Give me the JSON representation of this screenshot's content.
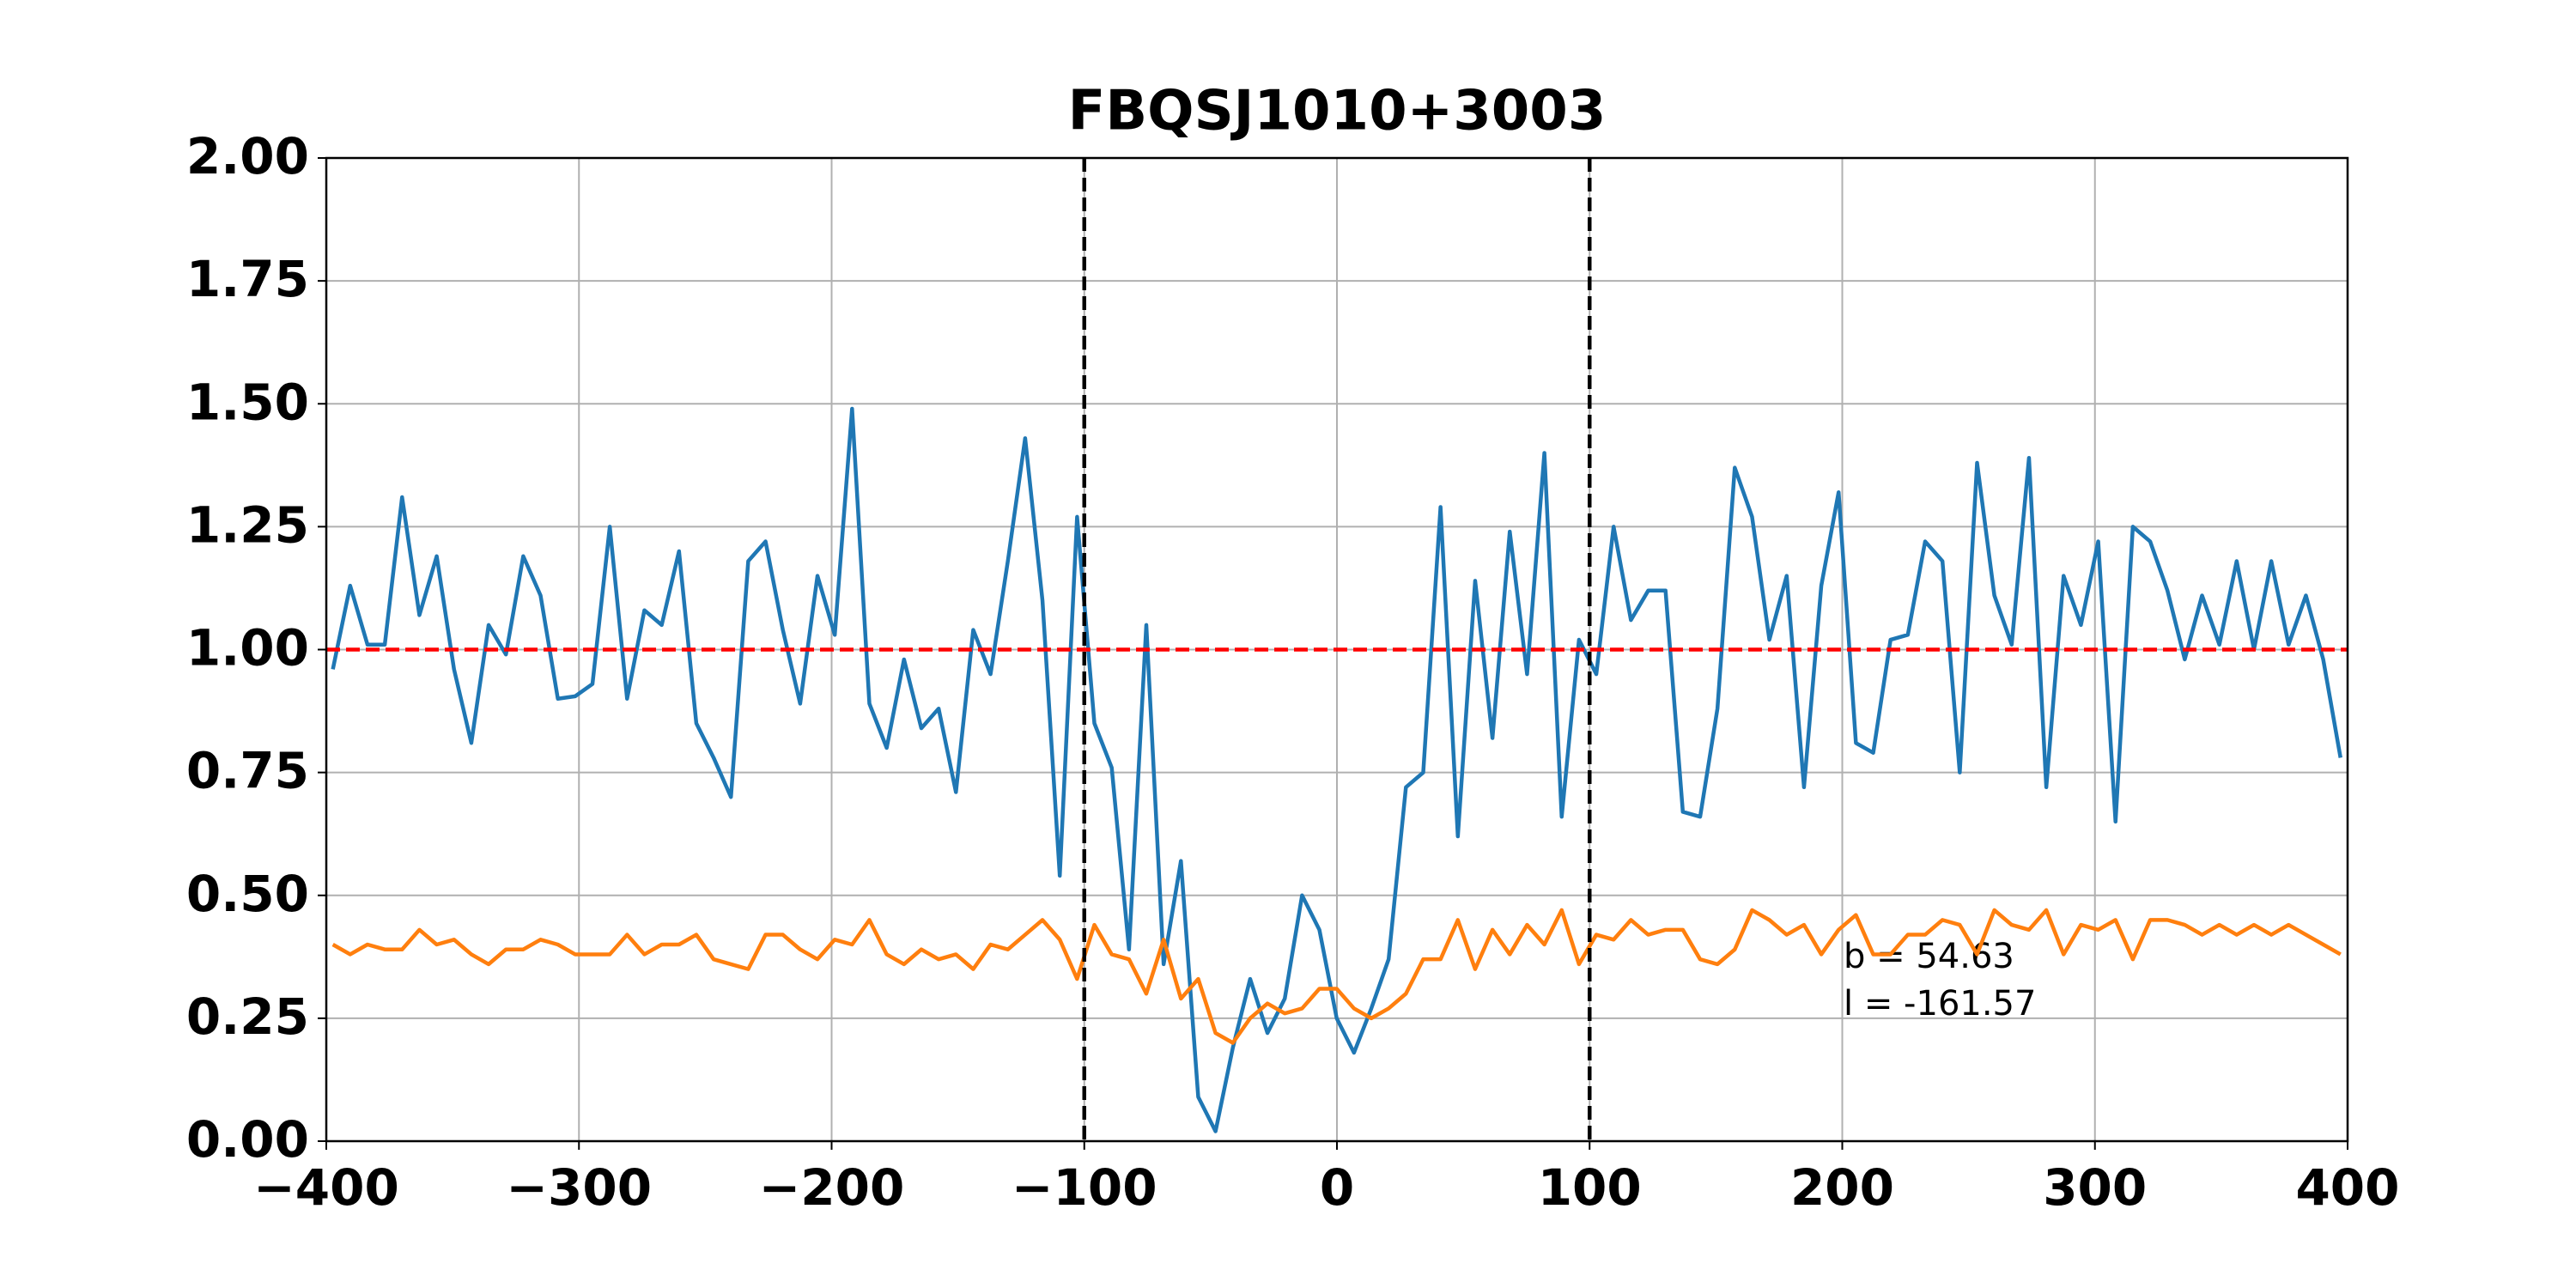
{
  "chart_data": {
    "type": "line",
    "title": "FBQSJ1010+3003",
    "x": [
      -397.4,
      -390.55,
      -383.7,
      -376.85,
      -370.0,
      -363.15,
      -356.3,
      -349.45,
      -342.6,
      -335.75,
      -328.9,
      -322.05,
      -315.2,
      -308.35,
      -301.5,
      -294.65,
      -287.8,
      -280.95,
      -274.1,
      -267.25,
      -260.4,
      -253.55,
      -246.7,
      -239.85,
      -233.0,
      -226.15,
      -219.3,
      -212.45,
      -205.6,
      -198.75,
      -191.9,
      -185.05,
      -178.2,
      -171.35,
      -164.5,
      -157.65,
      -150.8,
      -143.95,
      -137.1,
      -130.25,
      -123.4,
      -116.55,
      -109.7,
      -102.85,
      -96.0,
      -89.15,
      -82.3,
      -75.45,
      -68.6,
      -61.75,
      -54.9,
      -48.05,
      -41.2,
      -34.35,
      -27.5,
      -20.65,
      -13.8,
      -6.95,
      -0.1,
      6.75,
      13.6,
      20.45,
      27.3,
      34.15,
      41.0,
      47.85,
      54.7,
      61.55,
      68.4,
      75.25,
      82.1,
      88.95,
      95.8,
      102.65,
      109.5,
      116.35,
      123.2,
      130.05,
      136.9,
      143.75,
      150.6,
      157.45,
      164.3,
      171.15,
      178.0,
      184.85,
      191.7,
      198.55,
      205.4,
      212.25,
      219.1,
      225.95,
      232.8,
      239.65,
      246.5,
      253.35,
      260.2,
      267.05,
      273.9,
      280.75,
      287.6,
      294.45,
      301.3,
      308.15,
      315.0,
      321.85,
      328.7,
      335.55,
      342.4,
      349.25,
      356.1,
      362.95,
      369.8,
      376.65,
      383.5,
      390.35,
      397.2
    ],
    "series": [
      {
        "color": "#1f77b4",
        "values": [
          0.96,
          1.13,
          1.01,
          1.01,
          1.31,
          1.07,
          1.19,
          0.96,
          0.81,
          1.05,
          0.99,
          1.19,
          1.11,
          0.9,
          0.905,
          0.93,
          1.25,
          0.9,
          1.08,
          1.05,
          1.2,
          0.85,
          0.78,
          0.7,
          1.18,
          1.22,
          1.04,
          0.89,
          1.15,
          1.03,
          1.49,
          0.89,
          0.8,
          0.98,
          0.84,
          0.88,
          0.71,
          1.04,
          0.95,
          1.18,
          1.43,
          1.1,
          0.54,
          1.27,
          0.85,
          0.76,
          0.39,
          1.05,
          0.36,
          0.57,
          0.09,
          0.02,
          0.19,
          0.33,
          0.22,
          0.29,
          0.5,
          0.43,
          0.25,
          0.18,
          0.27,
          0.37,
          0.72,
          0.75,
          1.29,
          0.62,
          1.14,
          0.82,
          1.24,
          0.95,
          1.4,
          0.66,
          1.02,
          0.95,
          1.25,
          1.06,
          1.12,
          1.12,
          0.67,
          0.66,
          0.88,
          1.37,
          1.27,
          1.02,
          1.15,
          0.72,
          1.13,
          1.32,
          0.81,
          0.79,
          1.02,
          1.03,
          1.22,
          1.18,
          0.75,
          1.38,
          1.11,
          1.01,
          1.39,
          0.72,
          1.15,
          1.05,
          1.22,
          0.65,
          1.25,
          1.22,
          1.12,
          0.98,
          1.11,
          1.01,
          1.18,
          1.0,
          1.18,
          1.01,
          1.11,
          0.98,
          0.78
        ]
      },
      {
        "color": "#ff7f0e",
        "values": [
          0.4,
          0.38,
          0.4,
          0.39,
          0.39,
          0.43,
          0.4,
          0.41,
          0.38,
          0.36,
          0.39,
          0.39,
          0.41,
          0.4,
          0.38,
          0.38,
          0.38,
          0.42,
          0.38,
          0.4,
          0.4,
          0.42,
          0.37,
          0.36,
          0.35,
          0.42,
          0.42,
          0.39,
          0.37,
          0.41,
          0.4,
          0.45,
          0.38,
          0.36,
          0.39,
          0.37,
          0.38,
          0.35,
          0.4,
          0.39,
          0.42,
          0.45,
          0.41,
          0.33,
          0.44,
          0.38,
          0.37,
          0.3,
          0.41,
          0.29,
          0.33,
          0.22,
          0.2,
          0.25,
          0.28,
          0.26,
          0.27,
          0.31,
          0.31,
          0.27,
          0.25,
          0.27,
          0.3,
          0.37,
          0.37,
          0.45,
          0.35,
          0.43,
          0.38,
          0.44,
          0.4,
          0.47,
          0.36,
          0.42,
          0.41,
          0.45,
          0.42,
          0.43,
          0.43,
          0.37,
          0.36,
          0.39,
          0.47,
          0.45,
          0.42,
          0.44,
          0.38,
          0.43,
          0.46,
          0.38,
          0.38,
          0.42,
          0.42,
          0.45,
          0.44,
          0.38,
          0.47,
          0.44,
          0.43,
          0.47,
          0.38,
          0.44,
          0.43,
          0.45,
          0.37,
          0.45,
          0.45,
          0.44,
          0.42,
          0.44,
          0.42,
          0.44,
          0.42,
          0.44,
          0.42,
          0.4,
          0.38
        ]
      }
    ],
    "xlim": [
      -400,
      400
    ],
    "xticks": [
      {
        "value": -400,
        "label": "−400"
      },
      {
        "value": -300,
        "label": "−300"
      },
      {
        "value": -200,
        "label": "−200"
      },
      {
        "value": -100,
        "label": "−100"
      },
      0,
      100,
      200,
      300,
      400
    ],
    "ylim": [
      0,
      2
    ],
    "yticks": [
      {
        "value": 0,
        "label": "0.00"
      },
      {
        "value": 0.25,
        "label": "0.25"
      },
      {
        "value": 0.5,
        "label": "0.50"
      },
      {
        "value": 0.75,
        "label": "0.75"
      },
      {
        "value": 1,
        "label": "1.00"
      },
      {
        "value": 1.25,
        "label": "1.25"
      },
      {
        "value": 1.5,
        "label": "1.50"
      },
      {
        "value": 1.75,
        "label": "1.75"
      },
      {
        "value": 2,
        "label": "2.00"
      }
    ],
    "grid": true,
    "vlines": [
      -100,
      100
    ],
    "vline_color": "#000000",
    "hline": 1,
    "hline_color": "#ff0000",
    "annotations": [
      "b = 54.63",
      "l = -161.57"
    ]
  }
}
